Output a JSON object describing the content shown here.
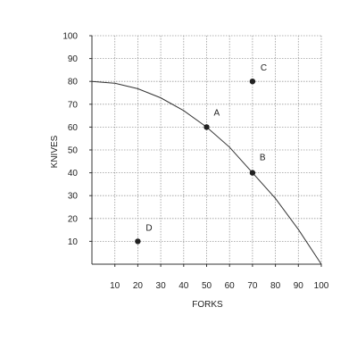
{
  "chart_data": {
    "type": "scatter",
    "xlabel": "FORKS",
    "ylabel": "KNIVES",
    "xlim": [
      0,
      100
    ],
    "ylim": [
      0,
      100
    ],
    "x_ticks": [
      10,
      20,
      30,
      40,
      50,
      60,
      70,
      80,
      90,
      100
    ],
    "y_ticks": [
      10,
      20,
      30,
      40,
      50,
      60,
      70,
      80,
      90,
      100
    ],
    "grid": true,
    "grid_style": "dotted",
    "curve": {
      "points": [
        {
          "x": 0,
          "y": 80
        },
        {
          "x": 10,
          "y": 79.2
        },
        {
          "x": 20,
          "y": 76.8
        },
        {
          "x": 30,
          "y": 72.8
        },
        {
          "x": 40,
          "y": 67.2
        },
        {
          "x": 50,
          "y": 60
        },
        {
          "x": 60,
          "y": 51.2
        },
        {
          "x": 70,
          "y": 40
        },
        {
          "x": 80,
          "y": 28.8
        },
        {
          "x": 90,
          "y": 15.2
        },
        {
          "x": 100,
          "y": 0
        }
      ]
    },
    "points": [
      {
        "label": "A",
        "x": 50,
        "y": 60
      },
      {
        "label": "B",
        "x": 70,
        "y": 40
      },
      {
        "label": "C",
        "x": 70,
        "y": 80
      },
      {
        "label": "D",
        "x": 20,
        "y": 10
      }
    ],
    "colors": {
      "axis": "#333333",
      "grid": "#9a9a9a",
      "curve": "#333333",
      "point": "#222222"
    }
  }
}
